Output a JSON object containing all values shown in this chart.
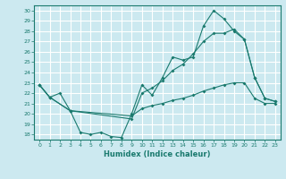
{
  "xlabel": "Humidex (Indice chaleur)",
  "bg_color": "#cce9f0",
  "grid_color": "#ffffff",
  "line_color": "#1a7a6e",
  "xlim": [
    -0.5,
    23.5
  ],
  "ylim": [
    17.5,
    30.5
  ],
  "yticks": [
    18,
    19,
    20,
    21,
    22,
    23,
    24,
    25,
    26,
    27,
    28,
    29,
    30
  ],
  "xticks": [
    0,
    1,
    2,
    3,
    4,
    5,
    6,
    7,
    8,
    9,
    10,
    11,
    12,
    13,
    14,
    15,
    16,
    17,
    18,
    19,
    20,
    21,
    22,
    23
  ],
  "line1_x": [
    0,
    1,
    2,
    3,
    4,
    5,
    6,
    7,
    8,
    9,
    10,
    11,
    12,
    13,
    14,
    15,
    16,
    17,
    18,
    19,
    20,
    21,
    22,
    23
  ],
  "line1_y": [
    22.8,
    21.6,
    22.0,
    20.3,
    18.2,
    18.0,
    18.2,
    17.8,
    17.7,
    20.0,
    22.8,
    21.8,
    23.5,
    25.5,
    25.2,
    25.5,
    28.5,
    30.0,
    29.2,
    28.0,
    27.2,
    23.5,
    21.5,
    21.2
  ],
  "line2_x": [
    0,
    1,
    3,
    9,
    10,
    11,
    12,
    13,
    14,
    15,
    16,
    17,
    18,
    19,
    20,
    21,
    22,
    23
  ],
  "line2_y": [
    22.8,
    21.6,
    20.3,
    19.5,
    22.0,
    22.5,
    23.2,
    24.2,
    24.8,
    25.8,
    27.0,
    27.8,
    27.8,
    28.2,
    27.2,
    23.5,
    21.5,
    21.2
  ],
  "line3_x": [
    0,
    1,
    3,
    9,
    10,
    11,
    12,
    13,
    14,
    15,
    16,
    17,
    18,
    19,
    20,
    21,
    22,
    23
  ],
  "line3_y": [
    22.8,
    21.6,
    20.3,
    19.8,
    20.5,
    20.8,
    21.0,
    21.3,
    21.5,
    21.8,
    22.2,
    22.5,
    22.8,
    23.0,
    23.0,
    21.5,
    21.0,
    21.0
  ]
}
